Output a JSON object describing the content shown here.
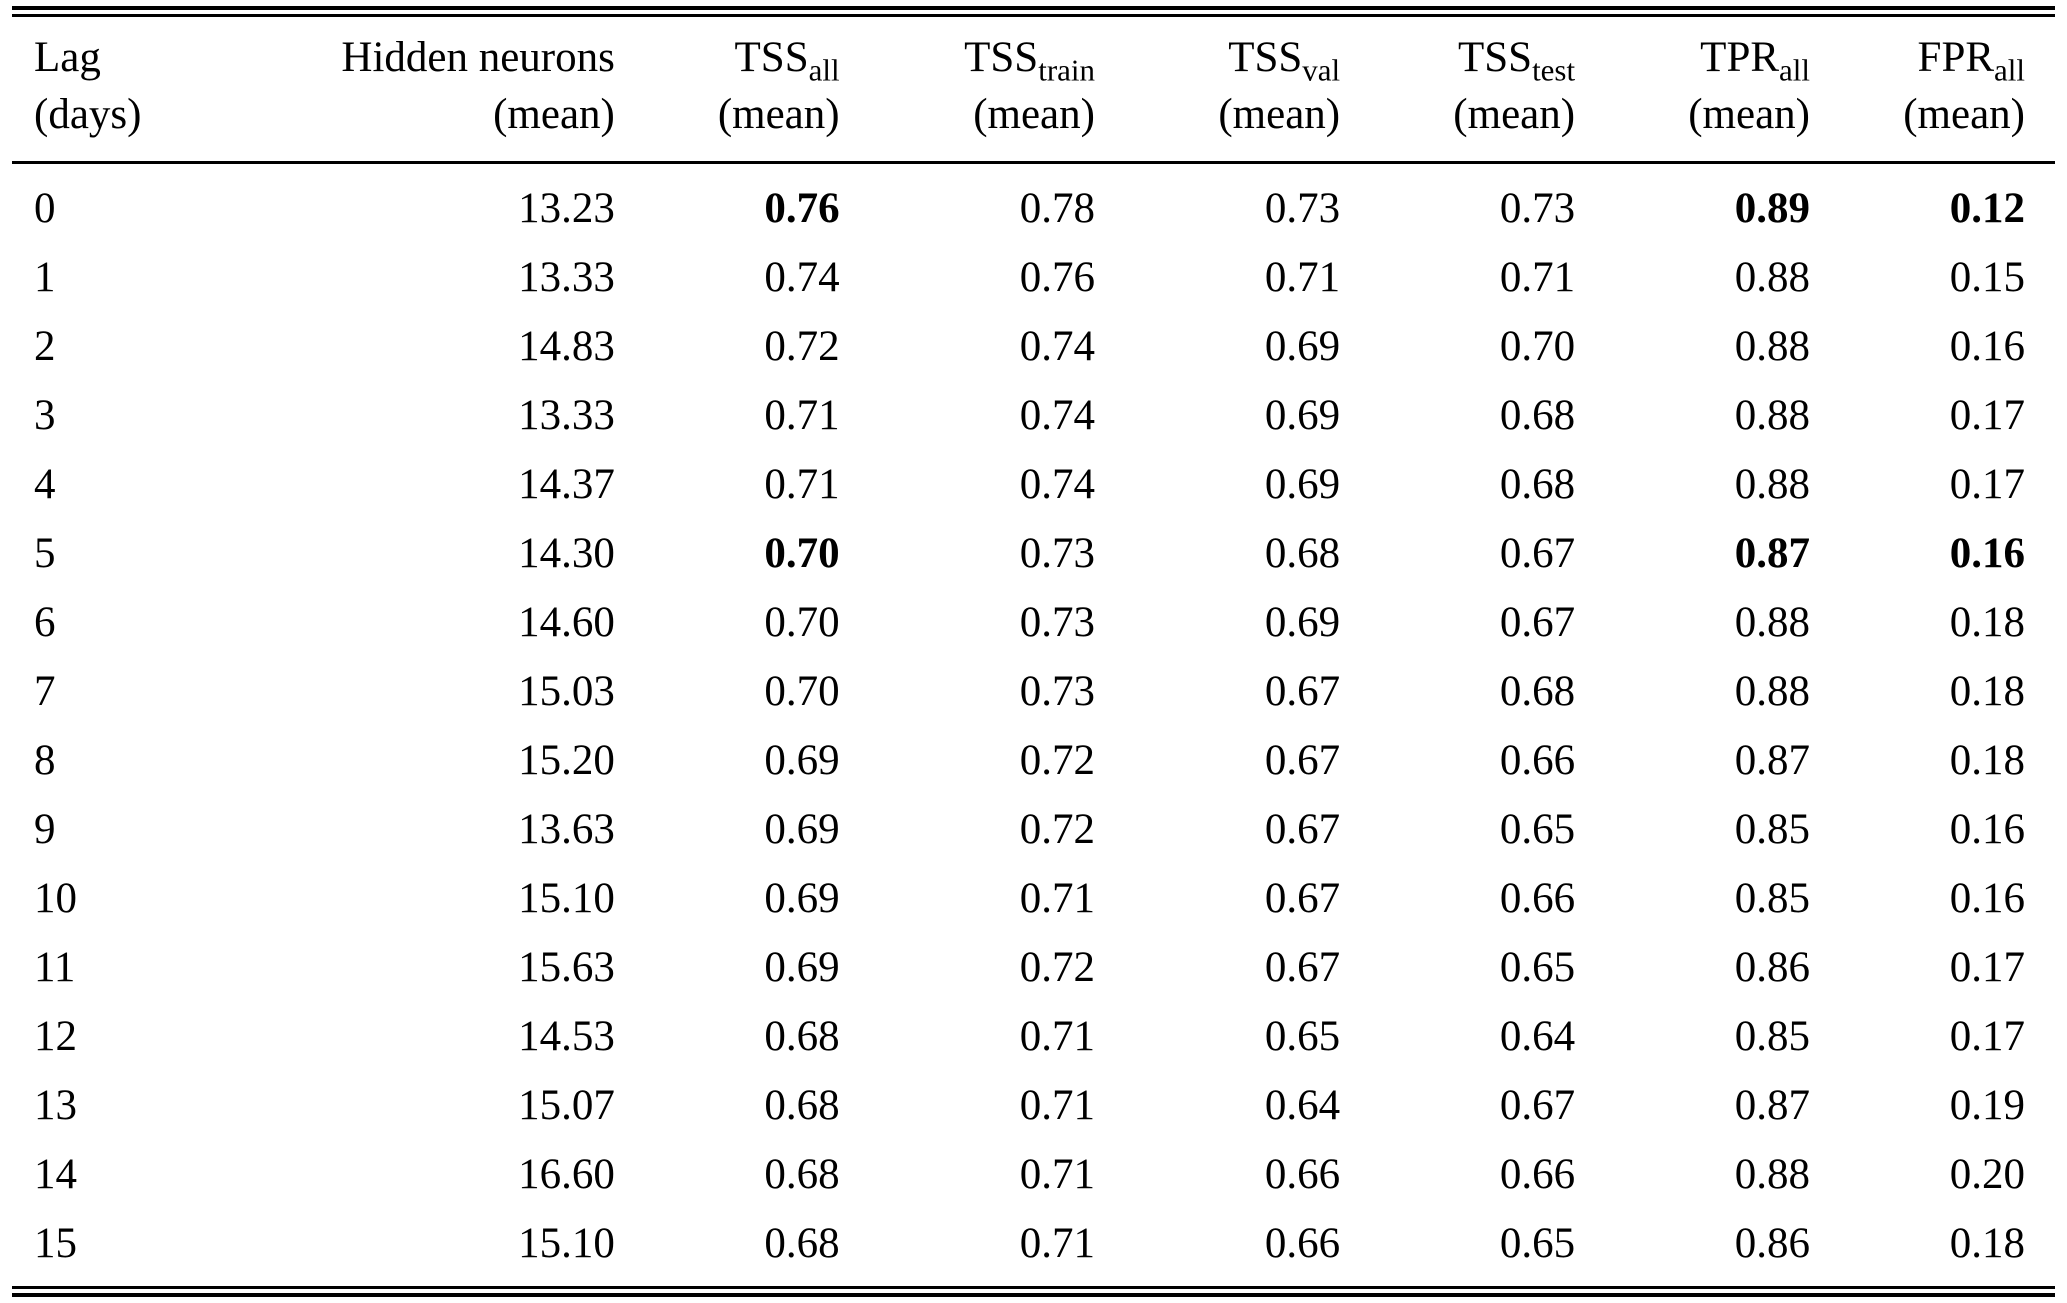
{
  "page": {
    "background": "#ffffff",
    "text_color": "#000000"
  },
  "table": {
    "columns": [
      {
        "base": "Lag",
        "sub": "",
        "line2": "(days)",
        "align": "left"
      },
      {
        "base": "Hidden neurons",
        "sub": "",
        "line2": "(mean)",
        "align": "right"
      },
      {
        "base": "TSS",
        "sub": "all",
        "line2": "(mean)",
        "align": "right"
      },
      {
        "base": "TSS",
        "sub": "train",
        "line2": "(mean)",
        "align": "right"
      },
      {
        "base": "TSS",
        "sub": "val",
        "line2": "(mean)",
        "align": "right"
      },
      {
        "base": "TSS",
        "sub": "test",
        "line2": "(mean)",
        "align": "right"
      },
      {
        "base": "TPR",
        "sub": "all",
        "line2": "(mean)",
        "align": "right"
      },
      {
        "base": "FPR",
        "sub": "all",
        "line2": "(mean)",
        "align": "right"
      }
    ],
    "rows": [
      {
        "cells": [
          "0",
          "13.23",
          "0.76",
          "0.78",
          "0.73",
          "0.73",
          "0.89",
          "0.12"
        ],
        "bold": [
          2,
          6,
          7
        ]
      },
      {
        "cells": [
          "1",
          "13.33",
          "0.74",
          "0.76",
          "0.71",
          "0.71",
          "0.88",
          "0.15"
        ],
        "bold": []
      },
      {
        "cells": [
          "2",
          "14.83",
          "0.72",
          "0.74",
          "0.69",
          "0.70",
          "0.88",
          "0.16"
        ],
        "bold": []
      },
      {
        "cells": [
          "3",
          "13.33",
          "0.71",
          "0.74",
          "0.69",
          "0.68",
          "0.88",
          "0.17"
        ],
        "bold": []
      },
      {
        "cells": [
          "4",
          "14.37",
          "0.71",
          "0.74",
          "0.69",
          "0.68",
          "0.88",
          "0.17"
        ],
        "bold": []
      },
      {
        "cells": [
          "5",
          "14.30",
          "0.70",
          "0.73",
          "0.68",
          "0.67",
          "0.87",
          "0.16"
        ],
        "bold": [
          2,
          6,
          7
        ]
      },
      {
        "cells": [
          "6",
          "14.60",
          "0.70",
          "0.73",
          "0.69",
          "0.67",
          "0.88",
          "0.18"
        ],
        "bold": []
      },
      {
        "cells": [
          "7",
          "15.03",
          "0.70",
          "0.73",
          "0.67",
          "0.68",
          "0.88",
          "0.18"
        ],
        "bold": []
      },
      {
        "cells": [
          "8",
          "15.20",
          "0.69",
          "0.72",
          "0.67",
          "0.66",
          "0.87",
          "0.18"
        ],
        "bold": []
      },
      {
        "cells": [
          "9",
          "13.63",
          "0.69",
          "0.72",
          "0.67",
          "0.65",
          "0.85",
          "0.16"
        ],
        "bold": []
      },
      {
        "cells": [
          "10",
          "15.10",
          "0.69",
          "0.71",
          "0.67",
          "0.66",
          "0.85",
          "0.16"
        ],
        "bold": []
      },
      {
        "cells": [
          "11",
          "15.63",
          "0.69",
          "0.72",
          "0.67",
          "0.65",
          "0.86",
          "0.17"
        ],
        "bold": []
      },
      {
        "cells": [
          "12",
          "14.53",
          "0.68",
          "0.71",
          "0.65",
          "0.64",
          "0.85",
          "0.17"
        ],
        "bold": []
      },
      {
        "cells": [
          "13",
          "15.07",
          "0.68",
          "0.71",
          "0.64",
          "0.67",
          "0.87",
          "0.19"
        ],
        "bold": []
      },
      {
        "cells": [
          "14",
          "16.60",
          "0.68",
          "0.71",
          "0.66",
          "0.66",
          "0.88",
          "0.20"
        ],
        "bold": []
      },
      {
        "cells": [
          "15",
          "15.10",
          "0.68",
          "0.71",
          "0.66",
          "0.65",
          "0.86",
          "0.18"
        ],
        "bold": []
      }
    ]
  }
}
